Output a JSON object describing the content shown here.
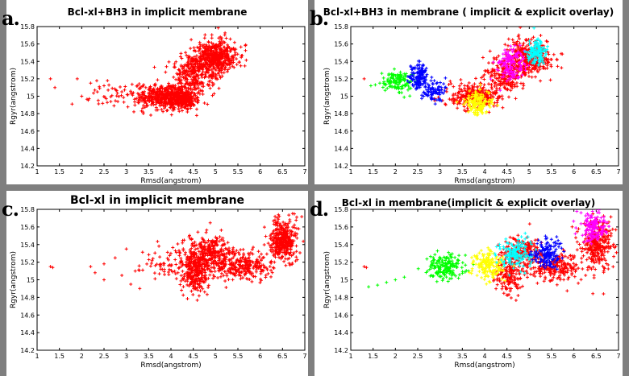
{
  "panel_labels": [
    "a.",
    "b.",
    "c.",
    "d."
  ],
  "colors": {
    "red": "#ff0000",
    "blue": "#0000ff",
    "green": "#00ff00",
    "yellow": "#ffff00",
    "magenta": "#ff00ff",
    "cyan": "#00ffff"
  },
  "chart_data": [
    {
      "type": "scatter",
      "title": "Bcl-xl+BH3 in implicit membrane",
      "xlabel": "Rmsd(angstrom)",
      "ylabel": "Rgyr(angstrom)",
      "xlim": [
        1,
        7
      ],
      "ylim": [
        14.2,
        15.8
      ],
      "xticks": [
        "1",
        "1.5",
        "2",
        "2.5",
        "3",
        "3.5",
        "4",
        "4.5",
        "5",
        "5.5",
        "6",
        "6.5",
        "7"
      ],
      "yticks": [
        "14.2",
        "14.4",
        "14.6",
        "14.8",
        "15",
        "15.2",
        "15.4",
        "15.6",
        "15.8"
      ],
      "marker": "+",
      "series": [
        {
          "name": "implicit",
          "color": "red",
          "clusters": [
            {
              "cx": 3.8,
              "cy": 15.0,
              "sx": 0.3,
              "sy": 0.07,
              "n": 420
            },
            {
              "cx": 4.25,
              "cy": 14.97,
              "sx": 0.2,
              "sy": 0.07,
              "n": 260
            },
            {
              "cx": 4.5,
              "cy": 15.25,
              "sx": 0.25,
              "sy": 0.1,
              "n": 260
            },
            {
              "cx": 5.0,
              "cy": 15.45,
              "sx": 0.25,
              "sy": 0.1,
              "n": 520
            },
            {
              "cx": 2.7,
              "cy": 15.0,
              "sx": 0.3,
              "sy": 0.08,
              "n": 45
            }
          ],
          "points": [
            [
              1.3,
              15.2
            ],
            [
              1.4,
              15.1
            ],
            [
              1.9,
              15.2
            ],
            [
              2.0,
              15.0
            ],
            [
              2.2,
              15.15
            ],
            [
              2.35,
              15.05
            ],
            [
              2.5,
              15.12
            ]
          ]
        }
      ]
    },
    {
      "type": "scatter",
      "title": "Bcl-xl+BH3 in membrane ( implicit & explicit overlay)",
      "xlabel": "Rmsd(angstrom)",
      "ylabel": "Rgyr(angstrom)",
      "xlim": [
        1,
        7
      ],
      "ylim": [
        14.2,
        15.8
      ],
      "xticks": [
        "1",
        "1.5",
        "2",
        "2.5",
        "3",
        "3.5",
        "4",
        "4.5",
        "5",
        "5.5",
        "6",
        "6.5",
        "7"
      ],
      "yticks": [
        "14.2",
        "14.4",
        "14.6",
        "14.8",
        "15",
        "15.2",
        "15.4",
        "15.6",
        "15.8"
      ],
      "marker": "+",
      "series": [
        {
          "name": "implicit",
          "color": "red",
          "clusters": [
            {
              "cx": 3.8,
              "cy": 15.0,
              "sx": 0.3,
              "sy": 0.07,
              "n": 320
            },
            {
              "cx": 4.5,
              "cy": 15.25,
              "sx": 0.25,
              "sy": 0.1,
              "n": 220
            },
            {
              "cx": 5.0,
              "cy": 15.45,
              "sx": 0.25,
              "sy": 0.1,
              "n": 380
            }
          ],
          "points": [
            [
              1.3,
              15.2
            ]
          ]
        },
        {
          "name": "green",
          "color": "green",
          "clusters": [
            {
              "cx": 2.05,
              "cy": 15.17,
              "sx": 0.15,
              "sy": 0.06,
              "n": 130
            }
          ],
          "points": [
            [
              1.45,
              15.12
            ],
            [
              1.55,
              15.13
            ],
            [
              1.65,
              15.15
            ]
          ]
        },
        {
          "name": "blue",
          "color": "blue",
          "clusters": [
            {
              "cx": 2.55,
              "cy": 15.22,
              "sx": 0.12,
              "sy": 0.08,
              "n": 140
            },
            {
              "cx": 2.85,
              "cy": 15.05,
              "sx": 0.12,
              "sy": 0.06,
              "n": 80
            }
          ],
          "points": []
        },
        {
          "name": "yellow",
          "color": "yellow",
          "clusters": [
            {
              "cx": 3.85,
              "cy": 14.93,
              "sx": 0.15,
              "sy": 0.07,
              "n": 150
            }
          ],
          "points": []
        },
        {
          "name": "magenta",
          "color": "magenta",
          "clusters": [
            {
              "cx": 4.6,
              "cy": 15.35,
              "sx": 0.15,
              "sy": 0.1,
              "n": 140
            }
          ],
          "points": []
        },
        {
          "name": "cyan",
          "color": "cyan",
          "clusters": [
            {
              "cx": 5.15,
              "cy": 15.5,
              "sx": 0.1,
              "sy": 0.07,
              "n": 140
            }
          ],
          "points": []
        }
      ]
    },
    {
      "type": "scatter",
      "title": "Bcl-xl in implicit membrane",
      "xlabel": "Rmsd(angstrom)",
      "ylabel": "Rgyr(angstrom)",
      "xlim": [
        1,
        7
      ],
      "ylim": [
        14.2,
        15.8
      ],
      "xticks": [
        "1",
        "1.5",
        "2",
        "2.5",
        "3",
        "3.5",
        "4",
        "4.5",
        "5",
        "5.5",
        "6",
        "6.5",
        "7"
      ],
      "yticks": [
        "14.2",
        "14.4",
        "14.6",
        "14.8",
        "15",
        "15.2",
        "15.4",
        "15.6",
        "15.8"
      ],
      "marker": "+",
      "series": [
        {
          "name": "implicit",
          "color": "red",
          "clusters": [
            {
              "cx": 4.55,
              "cy": 15.05,
              "sx": 0.15,
              "sy": 0.1,
              "n": 260
            },
            {
              "cx": 4.85,
              "cy": 15.3,
              "sx": 0.25,
              "sy": 0.1,
              "n": 320
            },
            {
              "cx": 5.6,
              "cy": 15.15,
              "sx": 0.3,
              "sy": 0.08,
              "n": 280
            },
            {
              "cx": 6.5,
              "cy": 15.45,
              "sx": 0.15,
              "sy": 0.12,
              "n": 380
            },
            {
              "cx": 4.0,
              "cy": 15.2,
              "sx": 0.3,
              "sy": 0.1,
              "n": 80
            }
          ],
          "points": [
            [
              1.3,
              15.15
            ],
            [
              1.35,
              15.14
            ],
            [
              2.2,
              15.15
            ],
            [
              2.3,
              15.08
            ],
            [
              2.5,
              15.18
            ],
            [
              2.75,
              15.25
            ],
            [
              3.0,
              15.35
            ],
            [
              2.9,
              15.05
            ],
            [
              3.2,
              15.1
            ],
            [
              3.3,
              14.9
            ],
            [
              3.1,
              14.95
            ],
            [
              2.5,
              15.0
            ]
          ]
        }
      ]
    },
    {
      "type": "scatter",
      "title": "Bcl-xl in membrane(implicit & explicit overlay)",
      "xlabel": "Rmsd(angstrom)",
      "ylabel": "Rgyr(angstrom)",
      "xlim": [
        1,
        7
      ],
      "ylim": [
        14.2,
        15.8
      ],
      "xticks": [
        "1",
        "1.5",
        "2",
        "2.5",
        "3",
        "3.5",
        "4",
        "4.5",
        "5",
        "5.5",
        "6",
        "6.5",
        "7"
      ],
      "yticks": [
        "14.2",
        "14.4",
        "14.6",
        "14.8",
        "15",
        "15.2",
        "15.4",
        "15.6",
        "15.8"
      ],
      "marker": "+",
      "series": [
        {
          "name": "implicit",
          "color": "red",
          "clusters": [
            {
              "cx": 4.55,
              "cy": 15.05,
              "sx": 0.15,
              "sy": 0.1,
              "n": 160
            },
            {
              "cx": 4.85,
              "cy": 15.3,
              "sx": 0.25,
              "sy": 0.1,
              "n": 200
            },
            {
              "cx": 5.6,
              "cy": 15.15,
              "sx": 0.3,
              "sy": 0.08,
              "n": 200
            },
            {
              "cx": 6.5,
              "cy": 15.4,
              "sx": 0.18,
              "sy": 0.14,
              "n": 320
            }
          ],
          "points": [
            [
              1.3,
              15.15
            ],
            [
              1.35,
              15.14
            ]
          ]
        },
        {
          "name": "green",
          "color": "green",
          "clusters": [
            {
              "cx": 3.1,
              "cy": 15.15,
              "sx": 0.2,
              "sy": 0.08,
              "n": 170
            }
          ],
          "points": [
            [
              1.4,
              14.92
            ],
            [
              1.6,
              14.94
            ],
            [
              1.8,
              14.97
            ],
            [
              2.0,
              15.0
            ],
            [
              2.2,
              15.03
            ]
          ]
        },
        {
          "name": "yellow",
          "color": "yellow",
          "clusters": [
            {
              "cx": 4.1,
              "cy": 15.15,
              "sx": 0.18,
              "sy": 0.08,
              "n": 160
            }
          ],
          "points": []
        },
        {
          "name": "cyan",
          "color": "cyan",
          "clusters": [
            {
              "cx": 4.7,
              "cy": 15.3,
              "sx": 0.2,
              "sy": 0.08,
              "n": 140
            }
          ],
          "points": []
        },
        {
          "name": "blue",
          "color": "blue",
          "clusters": [
            {
              "cx": 5.4,
              "cy": 15.3,
              "sx": 0.15,
              "sy": 0.08,
              "n": 150
            }
          ],
          "points": []
        },
        {
          "name": "magenta",
          "color": "magenta",
          "clusters": [
            {
              "cx": 6.45,
              "cy": 15.6,
              "sx": 0.15,
              "sy": 0.08,
              "n": 140
            }
          ],
          "points": []
        }
      ]
    }
  ]
}
